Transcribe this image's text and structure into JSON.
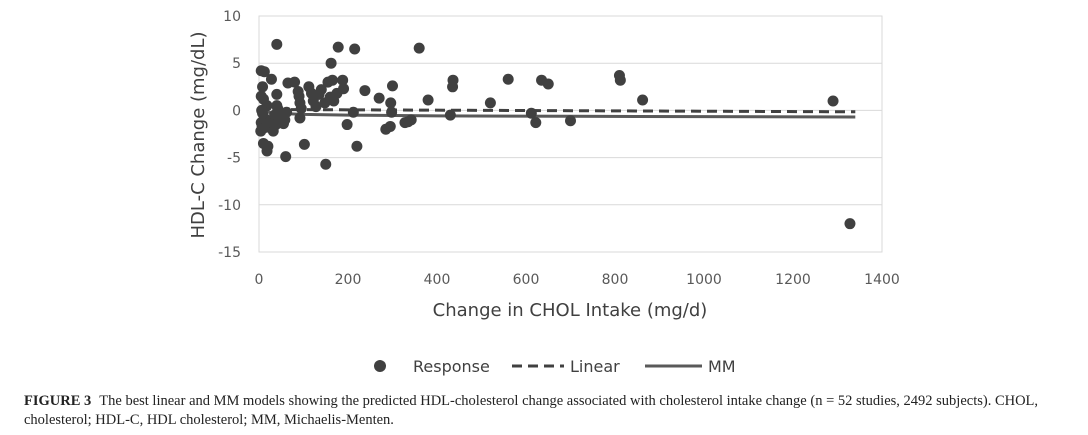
{
  "chart_data": {
    "type": "scatter",
    "xlabel": "Change in CHOL Intake (mg/d)",
    "ylabel": "HDL-C Change (mg/dL)",
    "xlim": [
      0,
      1400
    ],
    "ylim": [
      -15,
      10
    ],
    "xticks": [
      0,
      200,
      400,
      600,
      800,
      1000,
      1200,
      1400
    ],
    "yticks": [
      10,
      5,
      0,
      -5,
      -10,
      -15
    ],
    "grid": "horizontal",
    "legend": "bottom",
    "series": [
      {
        "name": "Response",
        "kind": "points",
        "color": "#404040",
        "points": [
          [
            5,
            4.2
          ],
          [
            12,
            4.1
          ],
          [
            40,
            7.0
          ],
          [
            28,
            3.3
          ],
          [
            8,
            2.5
          ],
          [
            5,
            1.5
          ],
          [
            10,
            1.2
          ],
          [
            18,
            0.5
          ],
          [
            6,
            0.0
          ],
          [
            8,
            -0.3
          ],
          [
            12,
            -0.8
          ],
          [
            5,
            -1.3
          ],
          [
            7,
            -1.7
          ],
          [
            4,
            -2.2
          ],
          [
            15,
            -1.8
          ],
          [
            10,
            -3.5
          ],
          [
            18,
            -4.3
          ],
          [
            20,
            -3.8
          ],
          [
            25,
            -1.2
          ],
          [
            32,
            -2.2
          ],
          [
            35,
            -0.5
          ],
          [
            38,
            -1.5
          ],
          [
            40,
            0.5
          ],
          [
            40,
            1.7
          ],
          [
            42,
            0.2
          ],
          [
            48,
            -0.7
          ],
          [
            55,
            -1.4
          ],
          [
            58,
            -1.0
          ],
          [
            62,
            -0.2
          ],
          [
            65,
            2.9
          ],
          [
            60,
            -4.9
          ],
          [
            80,
            3.0
          ],
          [
            88,
            2.0
          ],
          [
            90,
            1.5
          ],
          [
            92,
            0.8
          ],
          [
            95,
            0.2
          ],
          [
            92,
            -0.8
          ],
          [
            102,
            -3.6
          ],
          [
            112,
            2.5
          ],
          [
            118,
            1.8
          ],
          [
            122,
            1.0
          ],
          [
            128,
            0.4
          ],
          [
            135,
            1.7
          ],
          [
            140,
            2.2
          ],
          [
            148,
            0.8
          ],
          [
            150,
            -5.7
          ],
          [
            155,
            3.0
          ],
          [
            160,
            1.4
          ],
          [
            162,
            5.0
          ],
          [
            165,
            3.2
          ],
          [
            168,
            1.0
          ],
          [
            175,
            1.8
          ],
          [
            178,
            6.7
          ],
          [
            188,
            3.2
          ],
          [
            190,
            2.3
          ],
          [
            198,
            -1.5
          ],
          [
            212,
            -0.2
          ],
          [
            215,
            6.5
          ],
          [
            220,
            -3.8
          ],
          [
            238,
            2.1
          ],
          [
            270,
            1.3
          ],
          [
            285,
            -2.0
          ],
          [
            295,
            -1.7
          ],
          [
            296,
            0.8
          ],
          [
            298,
            -0.2
          ],
          [
            300,
            2.6
          ],
          [
            328,
            -1.3
          ],
          [
            335,
            -1.2
          ],
          [
            342,
            -1.0
          ],
          [
            360,
            6.6
          ],
          [
            380,
            1.1
          ],
          [
            430,
            -0.5
          ],
          [
            435,
            2.5
          ],
          [
            436,
            3.2
          ],
          [
            520,
            0.8
          ],
          [
            560,
            3.3
          ],
          [
            612,
            -0.3
          ],
          [
            622,
            -1.3
          ],
          [
            635,
            3.2
          ],
          [
            650,
            2.8
          ],
          [
            700,
            -1.1
          ],
          [
            810,
            3.7
          ],
          [
            812,
            3.2
          ],
          [
            862,
            1.1
          ],
          [
            1290,
            1.0
          ],
          [
            1328,
            -12.0
          ]
        ]
      },
      {
        "name": "Linear",
        "kind": "dashed-line",
        "color": "#404040",
        "points": [
          [
            0,
            0.1
          ],
          [
            1340,
            -0.15
          ]
        ]
      },
      {
        "name": "MM",
        "kind": "solid-line",
        "color": "#595959",
        "points": [
          [
            0,
            0.0
          ],
          [
            25,
            -0.22
          ],
          [
            50,
            -0.33
          ],
          [
            100,
            -0.42
          ],
          [
            200,
            -0.5
          ],
          [
            400,
            -0.58
          ],
          [
            700,
            -0.63
          ],
          [
            1000,
            -0.66
          ],
          [
            1340,
            -0.7
          ]
        ]
      }
    ]
  },
  "legend": {
    "response": "Response",
    "linear": "Linear",
    "mm": "MM"
  },
  "caption": {
    "label": "FIGURE 3",
    "text": "The best linear and MM models showing the predicted HDL-cholesterol change associated with cholesterol intake change (n = 52 studies, 2492 subjects). CHOL, cholesterol; HDL-C, HDL cholesterol; MM, Michaelis-Menten."
  },
  "colors": {
    "point": "#404040",
    "gridline": "#d9d9d9",
    "axis_text": "#595959"
  }
}
